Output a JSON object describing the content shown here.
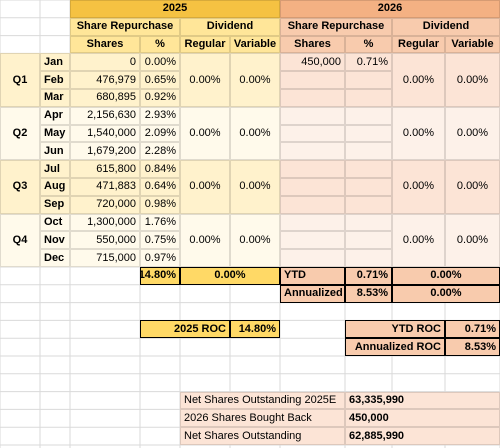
{
  "header": {
    "y2025": {
      "year": "2025",
      "share_repurchase": "Share Repurchase",
      "dividend": "Dividend",
      "shares": "Shares",
      "pct": "%",
      "regular": "Regular",
      "variable": "Variable"
    },
    "y2026": {
      "year": "2026",
      "share_repurchase": "Share Repurchase",
      "dividend": "Dividend",
      "shares": "Shares",
      "pct": "%",
      "regular": "Regular",
      "variable": "Variable"
    }
  },
  "quarters": [
    {
      "label": "Q1",
      "months": [
        {
          "month": "Jan",
          "shares": "0",
          "pct": "0.00%",
          "shares_2026": "450,000",
          "pct_2026": "0.71%"
        },
        {
          "month": "Feb",
          "shares": "476,979",
          "pct": "0.65%"
        },
        {
          "month": "Mar",
          "shares": "680,895",
          "pct": "0.92%"
        }
      ],
      "dividend_2025": {
        "regular": "0.00%",
        "variable": "0.00%"
      },
      "dividend_2026": {
        "regular": "0.00%",
        "variable": "0.00%"
      }
    },
    {
      "label": "Q2",
      "months": [
        {
          "month": "Apr",
          "shares": "2,156,630",
          "pct": "2.93%"
        },
        {
          "month": "May",
          "shares": "1,540,000",
          "pct": "2.09%"
        },
        {
          "month": "Jun",
          "shares": "1,679,200",
          "pct": "2.28%"
        }
      ],
      "dividend_2025": {
        "regular": "0.00%",
        "variable": "0.00%"
      },
      "dividend_2026": {
        "regular": "0.00%",
        "variable": "0.00%"
      }
    },
    {
      "label": "Q3",
      "months": [
        {
          "month": "Jul",
          "shares": "615,800",
          "pct": "0.84%"
        },
        {
          "month": "Aug",
          "shares": "471,883",
          "pct": "0.64%"
        },
        {
          "month": "Sep",
          "shares": "720,000",
          "pct": "0.98%"
        }
      ],
      "dividend_2025": {
        "regular": "0.00%",
        "variable": "0.00%"
      },
      "dividend_2026": {
        "regular": "0.00%",
        "variable": "0.00%"
      }
    },
    {
      "label": "Q4",
      "months": [
        {
          "month": "Oct",
          "shares": "1,300,000",
          "pct": "1.76%"
        },
        {
          "month": "Nov",
          "shares": "550,000",
          "pct": "0.75%"
        },
        {
          "month": "Dec",
          "shares": "715,000",
          "pct": "0.97%"
        }
      ],
      "dividend_2025": {
        "regular": "0.00%",
        "variable": "0.00%"
      },
      "dividend_2026": {
        "regular": "0.00%",
        "variable": "0.00%"
      }
    }
  ],
  "totals_2025": {
    "share_pct": "14.80%",
    "dividend": "0.00%"
  },
  "ytd_2026": {
    "label": "YTD",
    "share_pct": "0.71%",
    "dividend": "0.00%"
  },
  "annualized_2026": {
    "label": "Annualized",
    "share_pct": "8.53%",
    "dividend": "0.00%"
  },
  "roc_2025": {
    "label": "2025 ROC",
    "value": "14.80%"
  },
  "roc_2026": [
    {
      "label": "YTD ROC",
      "value": "0.71%"
    },
    {
      "label": "Annualized ROC",
      "value": "8.53%"
    }
  ],
  "summary": [
    {
      "label": "Net Shares Outstanding 2025E",
      "value": "63,335,990"
    },
    {
      "label": "2026 Shares Bought Back",
      "value": "450,000"
    },
    {
      "label": "Net Shares Outstanding",
      "value": "62,885,990"
    }
  ]
}
